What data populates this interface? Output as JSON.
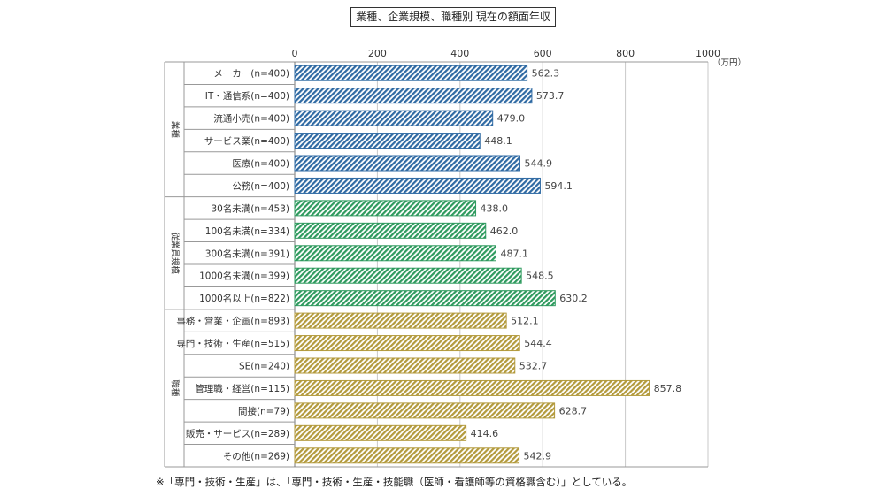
{
  "chart_data": {
    "type": "bar",
    "orientation": "horizontal",
    "title": "業種、企業規模、職種別  現在の額面年収",
    "unit_label": "（万円）",
    "xlim": [
      0,
      1000
    ],
    "x_ticks": [
      "0",
      "200",
      "400",
      "600",
      "800",
      "1000"
    ],
    "grid": true,
    "groups": [
      {
        "label": "業種",
        "color": "#2f6aa3",
        "items": [
          {
            "label": "メーカー(n=400)",
            "value": 562.3,
            "value_text": "562.3"
          },
          {
            "label": "IT・通信系(n=400)",
            "value": 573.7,
            "value_text": "573.7"
          },
          {
            "label": "流通小売(n=400)",
            "value": 479.0,
            "value_text": "479.0"
          },
          {
            "label": "サービス業(n=400)",
            "value": 448.1,
            "value_text": "448.1"
          },
          {
            "label": "医療(n=400)",
            "value": 544.9,
            "value_text": "544.9"
          },
          {
            "label": "公務(n=400)",
            "value": 594.1,
            "value_text": "594.1"
          }
        ]
      },
      {
        "label": "従業員規模",
        "color": "#2e9a5e",
        "items": [
          {
            "label": "30名未満(n=453)",
            "value": 438.0,
            "value_text": "438.0"
          },
          {
            "label": "100名未満(n=334)",
            "value": 462.0,
            "value_text": "462.0"
          },
          {
            "label": "300名未満(n=391)",
            "value": 487.1,
            "value_text": "487.1"
          },
          {
            "label": "1000名未満(n=399)",
            "value": 548.5,
            "value_text": "548.5"
          },
          {
            "label": "1000名以上(n=822)",
            "value": 630.2,
            "value_text": "630.2"
          }
        ]
      },
      {
        "label": "職種",
        "color": "#b39a3c",
        "items": [
          {
            "label": "事務・営業・企画(n=893)",
            "value": 512.1,
            "value_text": "512.1"
          },
          {
            "label": "専門・技術・生産(n=515)",
            "value": 544.4,
            "value_text": "544.4"
          },
          {
            "label": "SE(n=240)",
            "value": 532.7,
            "value_text": "532.7"
          },
          {
            "label": "管理職・経営(n=115)",
            "value": 857.8,
            "value_text": "857.8"
          },
          {
            "label": "間接(n=79)",
            "value": 628.7,
            "value_text": "628.7"
          },
          {
            "label": "販売・サービス(n=289)",
            "value": 414.6,
            "value_text": "414.6"
          },
          {
            "label": "その他(n=269)",
            "value": 542.9,
            "value_text": "542.9"
          }
        ]
      }
    ]
  },
  "footnote": "※「専門・技術・生産」は、「専門・技術・生産・技能職（医師・看護師等の資格職含む）」としている。"
}
